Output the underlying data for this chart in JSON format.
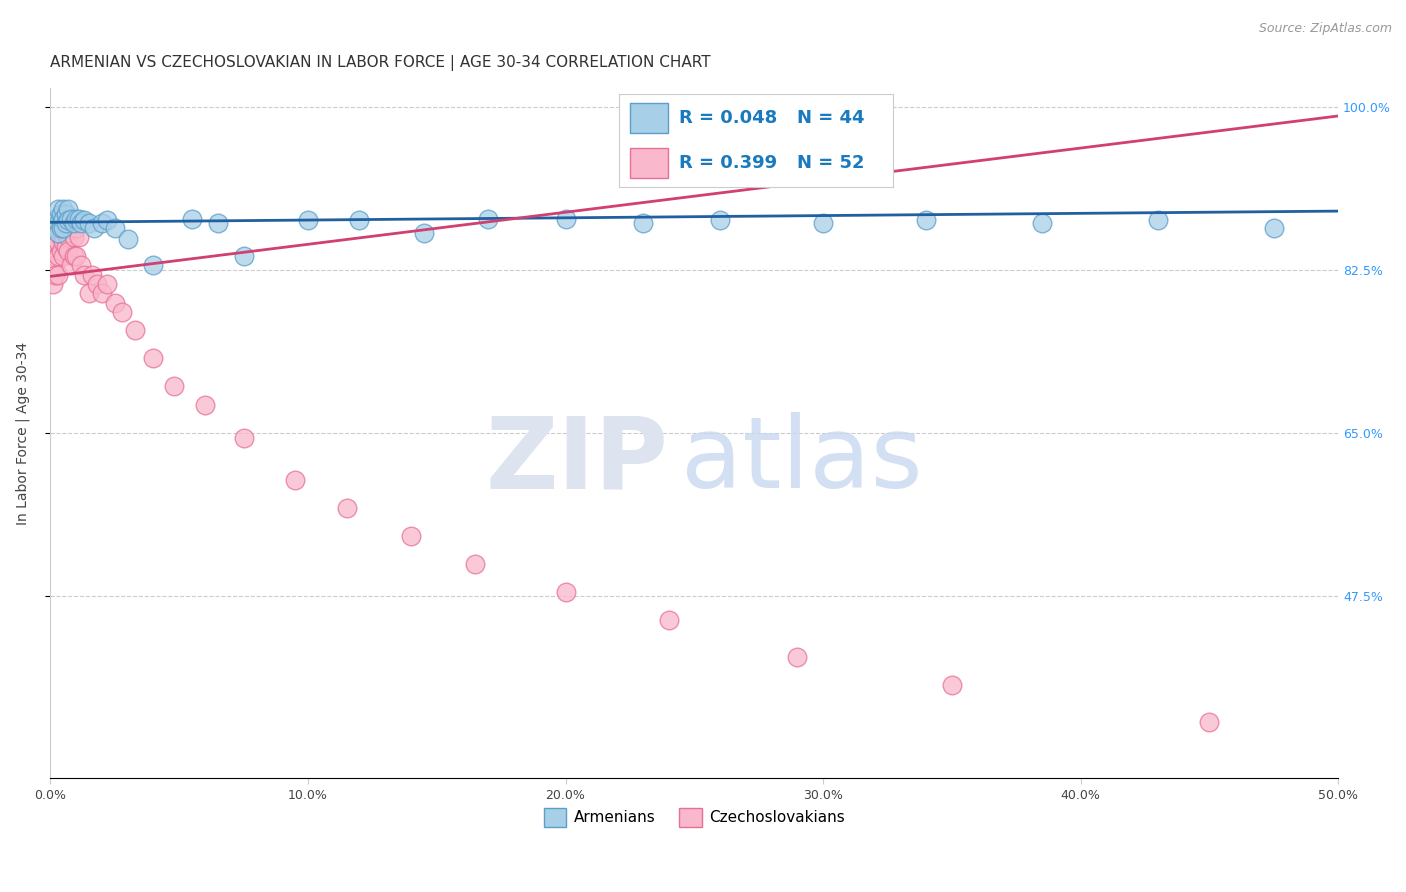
{
  "title": "ARMENIAN VS CZECHOSLOVAKIAN IN LABOR FORCE | AGE 30-34 CORRELATION CHART",
  "source": "Source: ZipAtlas.com",
  "ylabel": "In Labor Force | Age 30-34",
  "xlim": [
    0.0,
    0.5
  ],
  "ylim": [
    0.28,
    1.02
  ],
  "xtick_labels": [
    "0.0%",
    "10.0%",
    "20.0%",
    "30.0%",
    "40.0%",
    "50.0%"
  ],
  "xtick_values": [
    0.0,
    0.1,
    0.2,
    0.3,
    0.4,
    0.5
  ],
  "ytick_labels": [
    "100.0%",
    "82.5%",
    "65.0%",
    "47.5%"
  ],
  "ytick_values": [
    1.0,
    0.825,
    0.65,
    0.475
  ],
  "armenian_color": "#a8cfe8",
  "armenian_edge": "#5b9ec9",
  "czech_color": "#f9b8cb",
  "czech_edge": "#e87098",
  "armenian_R": 0.048,
  "armenian_N": 44,
  "czech_R": 0.399,
  "czech_N": 52,
  "legend_color": "#1a7abf",
  "trendline_armenian": "#2060a0",
  "trendline_czech": "#d04070",
  "background_color": "#ffffff",
  "grid_color": "#cccccc",
  "armenian_x": [
    0.001,
    0.002,
    0.002,
    0.003,
    0.003,
    0.003,
    0.004,
    0.004,
    0.004,
    0.005,
    0.005,
    0.005,
    0.006,
    0.006,
    0.007,
    0.007,
    0.008,
    0.009,
    0.01,
    0.011,
    0.012,
    0.013,
    0.015,
    0.017,
    0.02,
    0.022,
    0.025,
    0.03,
    0.04,
    0.055,
    0.065,
    0.075,
    0.1,
    0.12,
    0.145,
    0.17,
    0.2,
    0.23,
    0.26,
    0.3,
    0.34,
    0.385,
    0.43,
    0.475
  ],
  "armenian_y": [
    0.875,
    0.88,
    0.87,
    0.89,
    0.875,
    0.865,
    0.885,
    0.875,
    0.87,
    0.89,
    0.88,
    0.87,
    0.885,
    0.875,
    0.89,
    0.878,
    0.88,
    0.875,
    0.88,
    0.88,
    0.875,
    0.878,
    0.875,
    0.87,
    0.875,
    0.878,
    0.87,
    0.858,
    0.83,
    0.88,
    0.875,
    0.84,
    0.878,
    0.878,
    0.865,
    0.88,
    0.88,
    0.875,
    0.878,
    0.875,
    0.878,
    0.875,
    0.878,
    0.87
  ],
  "czech_x": [
    0.001,
    0.001,
    0.002,
    0.002,
    0.002,
    0.003,
    0.003,
    0.003,
    0.003,
    0.004,
    0.004,
    0.004,
    0.005,
    0.005,
    0.005,
    0.005,
    0.006,
    0.006,
    0.006,
    0.007,
    0.007,
    0.007,
    0.008,
    0.008,
    0.009,
    0.009,
    0.01,
    0.01,
    0.011,
    0.012,
    0.013,
    0.015,
    0.016,
    0.018,
    0.02,
    0.022,
    0.025,
    0.028,
    0.033,
    0.04,
    0.048,
    0.06,
    0.075,
    0.095,
    0.115,
    0.14,
    0.165,
    0.2,
    0.24,
    0.29,
    0.35,
    0.45
  ],
  "czech_y": [
    0.84,
    0.81,
    0.855,
    0.83,
    0.82,
    0.87,
    0.855,
    0.84,
    0.82,
    0.87,
    0.86,
    0.845,
    0.88,
    0.87,
    0.855,
    0.84,
    0.875,
    0.865,
    0.85,
    0.875,
    0.86,
    0.845,
    0.875,
    0.83,
    0.86,
    0.84,
    0.87,
    0.84,
    0.86,
    0.83,
    0.82,
    0.8,
    0.82,
    0.81,
    0.8,
    0.81,
    0.79,
    0.78,
    0.76,
    0.73,
    0.7,
    0.68,
    0.645,
    0.6,
    0.57,
    0.54,
    0.51,
    0.48,
    0.45,
    0.41,
    0.38,
    0.34
  ],
  "title_fontsize": 11,
  "axis_label_fontsize": 10,
  "tick_fontsize": 9,
  "source_fontsize": 9
}
